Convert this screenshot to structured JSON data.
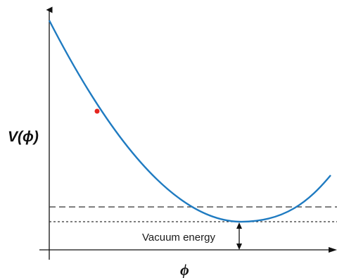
{
  "diagram": {
    "y_axis_label": "V(ϕ)",
    "x_axis_label": "ϕ",
    "annotation": "Vacuum energy",
    "curve_color": "#1f7bc1",
    "point_color": "#e5251f",
    "axis_color": "#111111",
    "guide_color": "#333333"
  }
}
